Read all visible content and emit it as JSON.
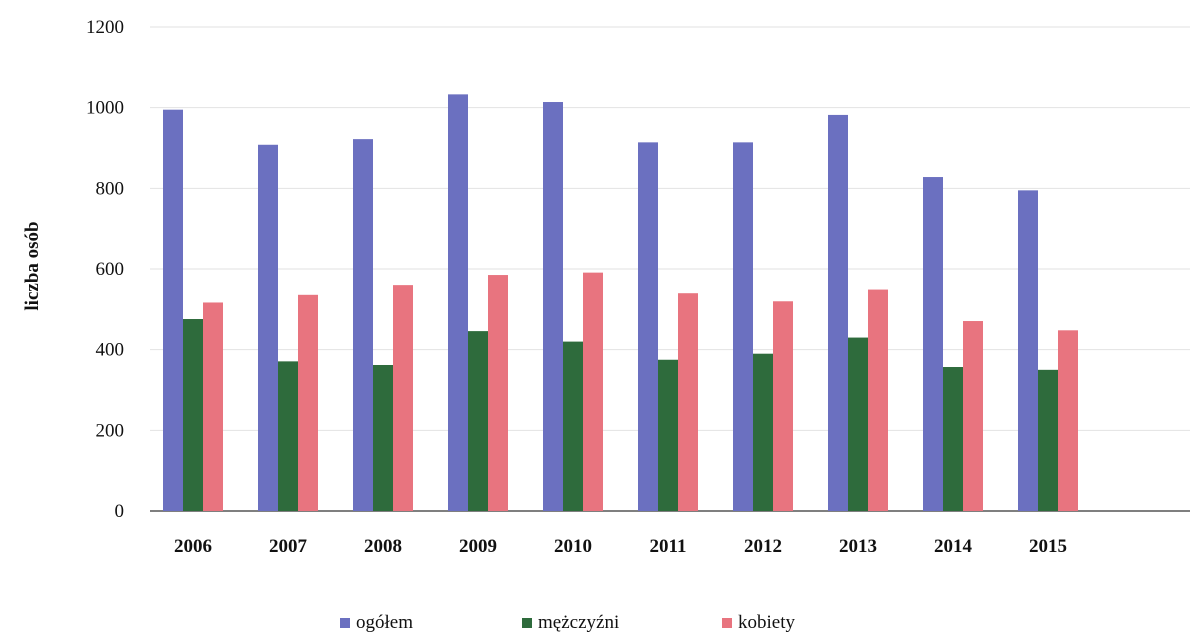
{
  "chart_data": {
    "type": "bar",
    "title": "",
    "xlabel": "",
    "ylabel": "liczba osób",
    "ylim": [
      0,
      1200
    ],
    "yticks": [
      0,
      200,
      400,
      600,
      800,
      1000,
      1200
    ],
    "grid": true,
    "legend_position": "bottom",
    "categories": [
      "2006",
      "2007",
      "2008",
      "2009",
      "2010",
      "2011",
      "2012",
      "2013",
      "2014",
      "2015"
    ],
    "series": [
      {
        "name": "ogółem",
        "color": "#6b70c0",
        "values": [
          995,
          908,
          922,
          1033,
          1014,
          914,
          914,
          982,
          828,
          795
        ]
      },
      {
        "name": "mężczyźni",
        "color": "#2e6b3c",
        "values": [
          476,
          371,
          362,
          446,
          420,
          375,
          390,
          430,
          357,
          350
        ]
      },
      {
        "name": "kobiety",
        "color": "#e8747f",
        "values": [
          517,
          536,
          560,
          585,
          591,
          540,
          520,
          549,
          471,
          448
        ]
      }
    ]
  }
}
